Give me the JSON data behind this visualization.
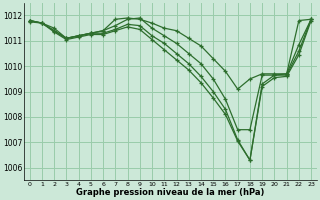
{
  "background_color": "#cce8d8",
  "grid_color": "#99ccaa",
  "line_color": "#2d6e2d",
  "xlim": [
    -0.5,
    23.5
  ],
  "ylim": [
    1005.5,
    1012.5
  ],
  "yticks": [
    1006,
    1007,
    1008,
    1009,
    1010,
    1011,
    1012
  ],
  "xticks": [
    0,
    1,
    2,
    3,
    4,
    5,
    6,
    7,
    8,
    9,
    10,
    11,
    12,
    13,
    14,
    15,
    16,
    17,
    18,
    19,
    20,
    21,
    22,
    23
  ],
  "xlabel": "Graphe pression niveau de la mer (hPa)",
  "series": [
    [
      1011.8,
      1011.7,
      1011.5,
      1011.1,
      1011.2,
      1011.3,
      1011.4,
      1011.85,
      1011.9,
      1011.85,
      1011.7,
      1011.5,
      1011.4,
      1011.1,
      1010.8,
      1010.3,
      1009.8,
      1009.1,
      1009.5,
      1009.7,
      1009.7,
      1009.7,
      1011.8,
      1011.85
    ],
    [
      1011.8,
      1011.7,
      1011.4,
      1011.1,
      1011.2,
      1011.3,
      1011.4,
      1011.6,
      1011.85,
      1011.9,
      1011.5,
      1011.2,
      1010.9,
      1010.5,
      1010.1,
      1009.5,
      1008.7,
      1007.5,
      1007.5,
      1009.65,
      1009.65,
      1009.7,
      1010.85,
      1011.85
    ],
    [
      1011.8,
      1011.7,
      1011.4,
      1011.1,
      1011.2,
      1011.3,
      1011.3,
      1011.45,
      1011.65,
      1011.6,
      1011.2,
      1010.9,
      1010.5,
      1010.1,
      1009.6,
      1009.0,
      1008.3,
      1007.1,
      1006.3,
      1009.3,
      1009.65,
      1009.65,
      1010.6,
      1011.85
    ],
    [
      1011.75,
      1011.7,
      1011.35,
      1011.05,
      1011.15,
      1011.25,
      1011.25,
      1011.4,
      1011.55,
      1011.45,
      1011.05,
      1010.65,
      1010.25,
      1009.85,
      1009.35,
      1008.75,
      1008.1,
      1007.05,
      1006.3,
      1009.2,
      1009.55,
      1009.6,
      1010.45,
      1011.8
    ]
  ]
}
